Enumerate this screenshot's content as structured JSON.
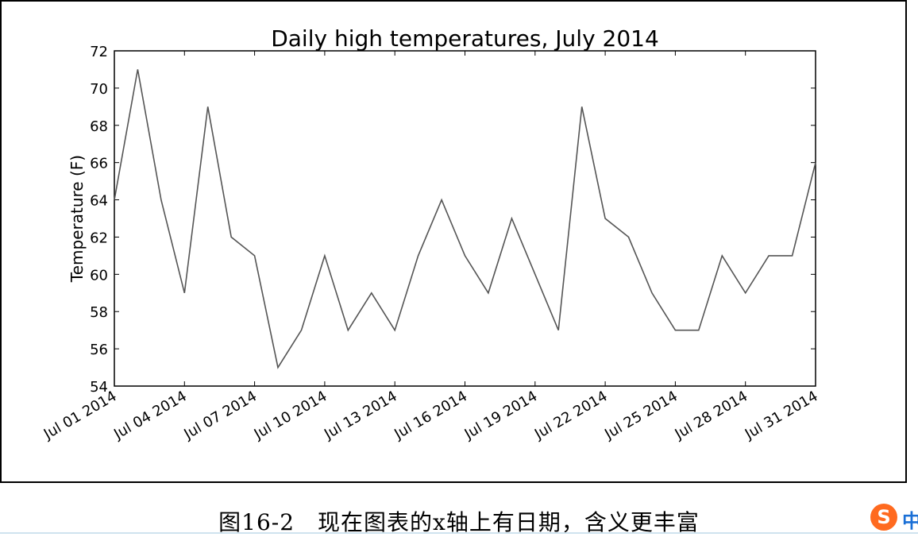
{
  "chart_data": {
    "type": "line",
    "title": "Daily high temperatures, July 2014",
    "xlabel": "",
    "ylabel": "Temperature (F)",
    "ylim": [
      54,
      72
    ],
    "yticks": [
      54,
      56,
      58,
      60,
      62,
      64,
      66,
      68,
      70,
      72
    ],
    "xlim": [
      "2014-07-01",
      "2014-07-31"
    ],
    "xticks": [
      "Jul 01 2014",
      "Jul 04 2014",
      "Jul 07 2014",
      "Jul 10 2014",
      "Jul 13 2014",
      "Jul 16 2014",
      "Jul 19 2014",
      "Jul 22 2014",
      "Jul 25 2014",
      "Jul 28 2014",
      "Jul 31 2014"
    ],
    "grid": false,
    "line_color": "#555555",
    "x": [
      "2014-07-01",
      "2014-07-02",
      "2014-07-03",
      "2014-07-04",
      "2014-07-05",
      "2014-07-06",
      "2014-07-07",
      "2014-07-08",
      "2014-07-09",
      "2014-07-10",
      "2014-07-11",
      "2014-07-12",
      "2014-07-13",
      "2014-07-14",
      "2014-07-15",
      "2014-07-16",
      "2014-07-17",
      "2014-07-18",
      "2014-07-19",
      "2014-07-20",
      "2014-07-21",
      "2014-07-22",
      "2014-07-23",
      "2014-07-24",
      "2014-07-25",
      "2014-07-26",
      "2014-07-27",
      "2014-07-28",
      "2014-07-29",
      "2014-07-30",
      "2014-07-31"
    ],
    "values": [
      64,
      71,
      64,
      59,
      69,
      62,
      61,
      55,
      57,
      61,
      57,
      59,
      57,
      61,
      64,
      61,
      59,
      63,
      60,
      57,
      69,
      63,
      62,
      59,
      57,
      57,
      61,
      59,
      61,
      61,
      66
    ]
  },
  "caption": "图16-2　现在图表的x轴上有日期，含义更丰富",
  "ime_badge": {
    "logo_letter": "S",
    "mode_char": "中",
    "logo_color": "#ff6a1f",
    "mode_color": "#1a6fd6"
  }
}
